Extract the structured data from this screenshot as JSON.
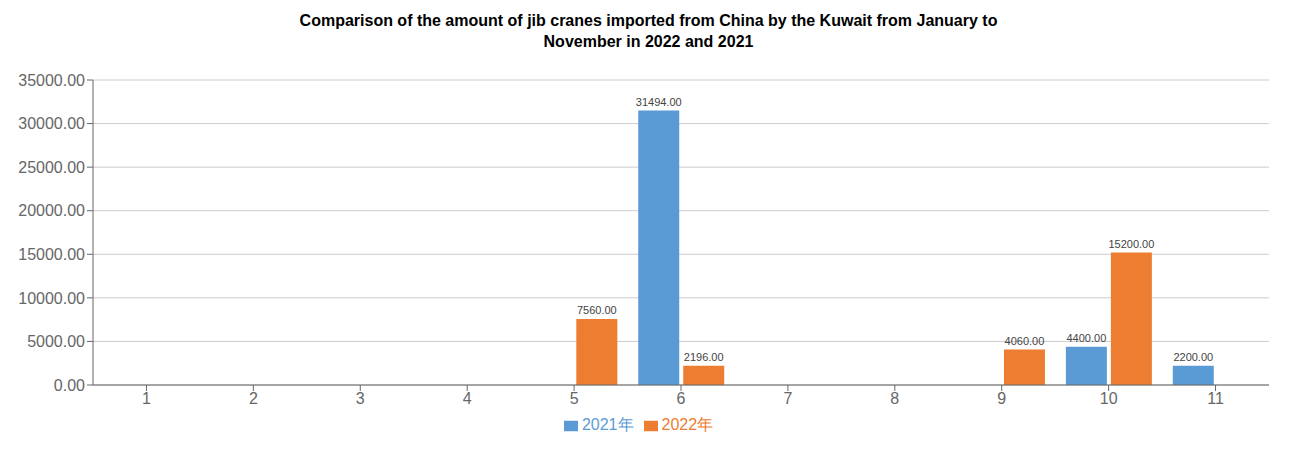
{
  "chart_data": {
    "type": "bar",
    "title": "Comparison of the amount of jib cranes imported from China by the Kuwait from January to\nNovember in 2022 and 2021",
    "categories": [
      "1",
      "2",
      "3",
      "4",
      "5",
      "6",
      "7",
      "8",
      "9",
      "10",
      "11"
    ],
    "series": [
      {
        "name": "2021年",
        "color": "#5B9BD5",
        "values": [
          0,
          0,
          0,
          0,
          0,
          31494.0,
          0,
          0,
          0,
          4400.0,
          2200.0
        ],
        "value_labels": [
          null,
          null,
          null,
          null,
          null,
          "31494.00",
          null,
          null,
          null,
          "4400.00",
          "2200.00"
        ]
      },
      {
        "name": "2022年",
        "color": "#ED7D31",
        "values": [
          0,
          0,
          0,
          0,
          7560.0,
          2196.0,
          0,
          0,
          4060.0,
          15200.0,
          0
        ],
        "value_labels": [
          null,
          null,
          null,
          null,
          "7560.00",
          "2196.00",
          null,
          null,
          "4060.00",
          "15200.00",
          null
        ]
      }
    ],
    "ylim": [
      0,
      35000
    ],
    "yticks": [
      {
        "value": 0,
        "label": "0.00"
      },
      {
        "value": 5000,
        "label": "5000.00"
      },
      {
        "value": 10000,
        "label": "10000.00"
      },
      {
        "value": 15000,
        "label": "15000.00"
      },
      {
        "value": 20000,
        "label": "20000.00"
      },
      {
        "value": 25000,
        "label": "25000.00"
      },
      {
        "value": 30000,
        "label": "30000.00"
      },
      {
        "value": 35000,
        "label": "35000.00"
      }
    ],
    "grid": true,
    "legend": "bottom",
    "data_labels": true
  }
}
